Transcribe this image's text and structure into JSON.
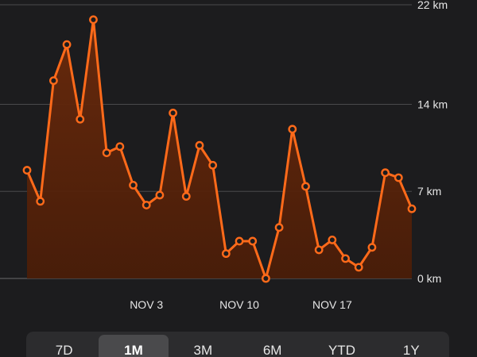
{
  "chart_data": {
    "type": "area",
    "y_unit": "km",
    "ylim": [
      0,
      22
    ],
    "y_ticks": [
      {
        "value": 0,
        "label": "0 km"
      },
      {
        "value": 7,
        "label": "7 km"
      },
      {
        "value": 14,
        "label": "14 km"
      },
      {
        "value": 22,
        "label": "22 km"
      }
    ],
    "x_tick_labels": [
      {
        "index": 9,
        "label": "NOV 3"
      },
      {
        "index": 16,
        "label": "NOV 10"
      },
      {
        "index": 23,
        "label": "NOV 17"
      }
    ],
    "grid": true,
    "series": [
      {
        "color": "#ff6a1a",
        "values": [
          8.7,
          6.2,
          15.9,
          18.8,
          12.8,
          20.8,
          10.1,
          10.6,
          7.5,
          5.9,
          6.7,
          13.3,
          6.6,
          10.7,
          9.1,
          2.0,
          3.0,
          3.0,
          0.0,
          4.1,
          12.0,
          7.4,
          2.3,
          3.1,
          1.6,
          0.9,
          2.5,
          8.5,
          8.1,
          5.6
        ]
      }
    ]
  },
  "range_selector": {
    "selected": "1M",
    "options": [
      {
        "label": "7D"
      },
      {
        "label": "1M"
      },
      {
        "label": "3M"
      },
      {
        "label": "6M"
      },
      {
        "label": "YTD"
      },
      {
        "label": "1Y"
      }
    ]
  }
}
